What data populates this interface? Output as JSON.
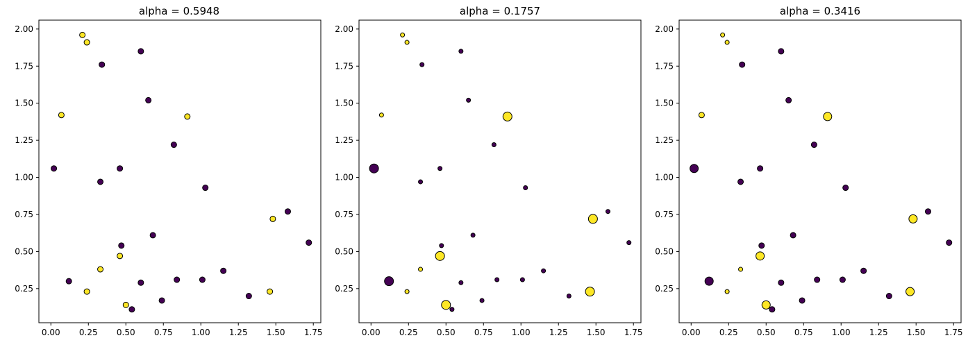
{
  "colors": {
    "class0": "#440154",
    "class1": "#fde725",
    "edge": "#000000"
  },
  "chart_data": [
    {
      "type": "scatter",
      "title": "alpha = 0.5948",
      "xlim": [
        -0.08,
        1.8
      ],
      "ylim": [
        0.02,
        2.06
      ],
      "xticks": [
        "0.00",
        "0.25",
        "0.50",
        "0.75",
        "1.00",
        "1.25",
        "1.50",
        "1.75"
      ],
      "yticks": [
        "0.25",
        "0.50",
        "0.75",
        "1.00",
        "1.25",
        "1.50",
        "1.75",
        "2.00"
      ],
      "grid": false,
      "points": [
        {
          "x": 0.21,
          "y": 1.96,
          "cls": 1,
          "size": 0.8
        },
        {
          "x": 0.24,
          "y": 1.91,
          "cls": 1,
          "size": 0.8
        },
        {
          "x": 0.34,
          "y": 1.76,
          "cls": 0,
          "size": 0.8
        },
        {
          "x": 0.6,
          "y": 1.85,
          "cls": 0,
          "size": 0.8
        },
        {
          "x": 0.07,
          "y": 1.42,
          "cls": 1,
          "size": 0.8
        },
        {
          "x": 0.65,
          "y": 1.52,
          "cls": 0,
          "size": 0.8
        },
        {
          "x": 0.91,
          "y": 1.41,
          "cls": 1,
          "size": 0.8
        },
        {
          "x": 0.82,
          "y": 1.22,
          "cls": 0,
          "size": 0.8
        },
        {
          "x": 0.02,
          "y": 1.06,
          "cls": 0,
          "size": 0.8
        },
        {
          "x": 0.46,
          "y": 1.06,
          "cls": 0,
          "size": 0.8
        },
        {
          "x": 0.33,
          "y": 0.97,
          "cls": 0,
          "size": 0.8
        },
        {
          "x": 1.03,
          "y": 0.93,
          "cls": 0,
          "size": 0.8
        },
        {
          "x": 1.58,
          "y": 0.77,
          "cls": 0,
          "size": 0.8
        },
        {
          "x": 1.48,
          "y": 0.72,
          "cls": 1,
          "size": 0.8
        },
        {
          "x": 0.68,
          "y": 0.61,
          "cls": 0,
          "size": 0.8
        },
        {
          "x": 1.72,
          "y": 0.56,
          "cls": 0,
          "size": 0.8
        },
        {
          "x": 0.47,
          "y": 0.54,
          "cls": 0,
          "size": 0.8
        },
        {
          "x": 0.46,
          "y": 0.47,
          "cls": 1,
          "size": 0.8
        },
        {
          "x": 0.33,
          "y": 0.38,
          "cls": 1,
          "size": 0.8
        },
        {
          "x": 1.15,
          "y": 0.37,
          "cls": 0,
          "size": 0.8
        },
        {
          "x": 0.12,
          "y": 0.3,
          "cls": 0,
          "size": 0.8
        },
        {
          "x": 0.84,
          "y": 0.31,
          "cls": 0,
          "size": 0.8
        },
        {
          "x": 1.01,
          "y": 0.31,
          "cls": 0,
          "size": 0.8
        },
        {
          "x": 0.6,
          "y": 0.29,
          "cls": 0,
          "size": 0.8
        },
        {
          "x": 0.24,
          "y": 0.23,
          "cls": 1,
          "size": 0.8
        },
        {
          "x": 1.46,
          "y": 0.23,
          "cls": 1,
          "size": 0.8
        },
        {
          "x": 1.32,
          "y": 0.2,
          "cls": 0,
          "size": 0.8
        },
        {
          "x": 0.74,
          "y": 0.17,
          "cls": 0,
          "size": 0.8
        },
        {
          "x": 0.5,
          "y": 0.14,
          "cls": 1,
          "size": 0.8
        },
        {
          "x": 0.54,
          "y": 0.11,
          "cls": 0,
          "size": 0.8
        }
      ]
    },
    {
      "type": "scatter",
      "title": "alpha = 0.1757",
      "xlim": [
        -0.08,
        1.8
      ],
      "ylim": [
        0.02,
        2.06
      ],
      "xticks": [
        "0.00",
        "0.25",
        "0.50",
        "0.75",
        "1.00",
        "1.25",
        "1.50",
        "1.75"
      ],
      "yticks": [
        "0.25",
        "0.50",
        "0.75",
        "1.00",
        "1.25",
        "1.50",
        "1.75",
        "2.00"
      ],
      "grid": false,
      "points": [
        {
          "x": 0.21,
          "y": 1.96,
          "cls": 1,
          "size": 0.6
        },
        {
          "x": 0.24,
          "y": 1.91,
          "cls": 1,
          "size": 0.6
        },
        {
          "x": 0.34,
          "y": 1.76,
          "cls": 0,
          "size": 0.6
        },
        {
          "x": 0.6,
          "y": 1.85,
          "cls": 0,
          "size": 0.6
        },
        {
          "x": 0.07,
          "y": 1.42,
          "cls": 1,
          "size": 0.6
        },
        {
          "x": 0.65,
          "y": 1.52,
          "cls": 0,
          "size": 0.6
        },
        {
          "x": 0.91,
          "y": 1.41,
          "cls": 1,
          "size": 1.3
        },
        {
          "x": 0.82,
          "y": 1.22,
          "cls": 0,
          "size": 0.6
        },
        {
          "x": 0.02,
          "y": 1.06,
          "cls": 0,
          "size": 1.3
        },
        {
          "x": 0.46,
          "y": 1.06,
          "cls": 0,
          "size": 0.6
        },
        {
          "x": 0.33,
          "y": 0.97,
          "cls": 0,
          "size": 0.6
        },
        {
          "x": 1.03,
          "y": 0.93,
          "cls": 0,
          "size": 0.6
        },
        {
          "x": 1.58,
          "y": 0.77,
          "cls": 0,
          "size": 0.6
        },
        {
          "x": 1.48,
          "y": 0.72,
          "cls": 1,
          "size": 1.3
        },
        {
          "x": 0.68,
          "y": 0.61,
          "cls": 0,
          "size": 0.6
        },
        {
          "x": 1.72,
          "y": 0.56,
          "cls": 0,
          "size": 0.6
        },
        {
          "x": 0.47,
          "y": 0.54,
          "cls": 0,
          "size": 0.6
        },
        {
          "x": 0.46,
          "y": 0.47,
          "cls": 1,
          "size": 1.3
        },
        {
          "x": 0.33,
          "y": 0.38,
          "cls": 1,
          "size": 0.6
        },
        {
          "x": 1.15,
          "y": 0.37,
          "cls": 0,
          "size": 0.6
        },
        {
          "x": 0.12,
          "y": 0.3,
          "cls": 0,
          "size": 1.3
        },
        {
          "x": 0.84,
          "y": 0.31,
          "cls": 0,
          "size": 0.6
        },
        {
          "x": 1.01,
          "y": 0.31,
          "cls": 0,
          "size": 0.6
        },
        {
          "x": 0.6,
          "y": 0.29,
          "cls": 0,
          "size": 0.6
        },
        {
          "x": 0.24,
          "y": 0.23,
          "cls": 1,
          "size": 0.6
        },
        {
          "x": 1.46,
          "y": 0.23,
          "cls": 1,
          "size": 1.3
        },
        {
          "x": 1.32,
          "y": 0.2,
          "cls": 0,
          "size": 0.6
        },
        {
          "x": 0.74,
          "y": 0.17,
          "cls": 0,
          "size": 0.6
        },
        {
          "x": 0.5,
          "y": 0.14,
          "cls": 1,
          "size": 1.3
        },
        {
          "x": 0.54,
          "y": 0.11,
          "cls": 0,
          "size": 0.6
        }
      ]
    },
    {
      "type": "scatter",
      "title": "alpha = 0.3416",
      "xlim": [
        -0.08,
        1.8
      ],
      "ylim": [
        0.02,
        2.06
      ],
      "xticks": [
        "0.00",
        "0.25",
        "0.50",
        "0.75",
        "1.00",
        "1.25",
        "1.50",
        "1.75"
      ],
      "yticks": [
        "0.25",
        "0.50",
        "0.75",
        "1.00",
        "1.25",
        "1.50",
        "1.75",
        "2.00"
      ],
      "grid": false,
      "points": [
        {
          "x": 0.21,
          "y": 1.96,
          "cls": 1,
          "size": 0.6
        },
        {
          "x": 0.24,
          "y": 1.91,
          "cls": 1,
          "size": 0.6
        },
        {
          "x": 0.34,
          "y": 1.76,
          "cls": 0,
          "size": 0.8
        },
        {
          "x": 0.6,
          "y": 1.85,
          "cls": 0,
          "size": 0.8
        },
        {
          "x": 0.07,
          "y": 1.42,
          "cls": 1,
          "size": 0.8
        },
        {
          "x": 0.65,
          "y": 1.52,
          "cls": 0,
          "size": 0.8
        },
        {
          "x": 0.91,
          "y": 1.41,
          "cls": 1,
          "size": 1.2
        },
        {
          "x": 0.82,
          "y": 1.22,
          "cls": 0,
          "size": 0.8
        },
        {
          "x": 0.02,
          "y": 1.06,
          "cls": 0,
          "size": 1.2
        },
        {
          "x": 0.46,
          "y": 1.06,
          "cls": 0,
          "size": 0.8
        },
        {
          "x": 0.33,
          "y": 0.97,
          "cls": 0,
          "size": 0.8
        },
        {
          "x": 1.03,
          "y": 0.93,
          "cls": 0,
          "size": 0.8
        },
        {
          "x": 1.58,
          "y": 0.77,
          "cls": 0,
          "size": 0.8
        },
        {
          "x": 1.48,
          "y": 0.72,
          "cls": 1,
          "size": 1.2
        },
        {
          "x": 0.68,
          "y": 0.61,
          "cls": 0,
          "size": 0.8
        },
        {
          "x": 1.72,
          "y": 0.56,
          "cls": 0,
          "size": 0.8
        },
        {
          "x": 0.47,
          "y": 0.54,
          "cls": 0,
          "size": 0.8
        },
        {
          "x": 0.46,
          "y": 0.47,
          "cls": 1,
          "size": 1.2
        },
        {
          "x": 0.33,
          "y": 0.38,
          "cls": 1,
          "size": 0.6
        },
        {
          "x": 1.15,
          "y": 0.37,
          "cls": 0,
          "size": 0.8
        },
        {
          "x": 0.12,
          "y": 0.3,
          "cls": 0,
          "size": 1.2
        },
        {
          "x": 0.84,
          "y": 0.31,
          "cls": 0,
          "size": 0.8
        },
        {
          "x": 1.01,
          "y": 0.31,
          "cls": 0,
          "size": 0.8
        },
        {
          "x": 0.6,
          "y": 0.29,
          "cls": 0,
          "size": 0.8
        },
        {
          "x": 0.24,
          "y": 0.23,
          "cls": 1,
          "size": 0.6
        },
        {
          "x": 1.46,
          "y": 0.23,
          "cls": 1,
          "size": 1.2
        },
        {
          "x": 1.32,
          "y": 0.2,
          "cls": 0,
          "size": 0.8
        },
        {
          "x": 0.74,
          "y": 0.17,
          "cls": 0,
          "size": 0.8
        },
        {
          "x": 0.5,
          "y": 0.14,
          "cls": 1,
          "size": 1.2
        },
        {
          "x": 0.54,
          "y": 0.11,
          "cls": 0,
          "size": 0.8
        }
      ]
    }
  ]
}
